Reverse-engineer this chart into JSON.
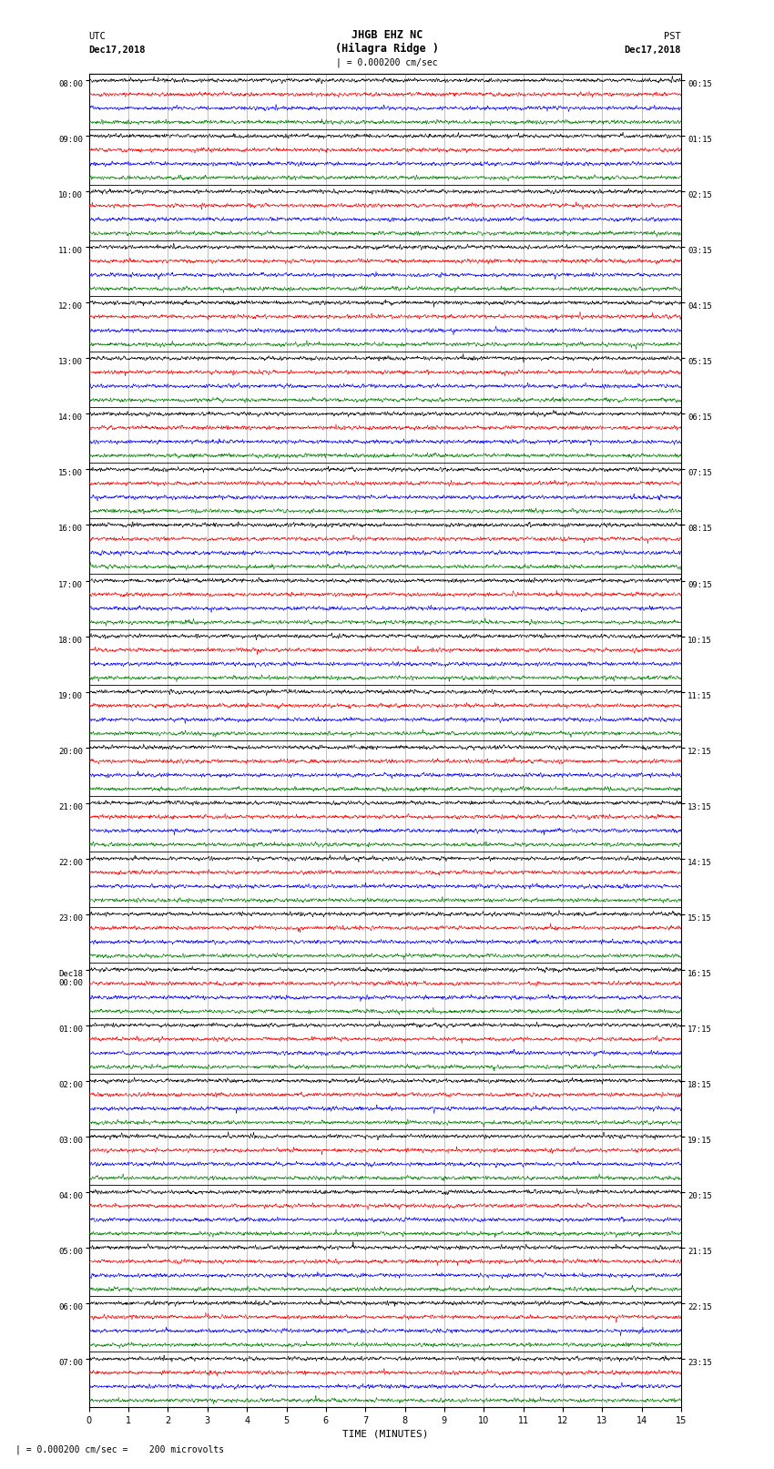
{
  "title_line1": "JHGB EHZ NC",
  "title_line2": "(Hilagra Ridge )",
  "scale_text": "| = 0.000200 cm/sec",
  "left_label": "UTC",
  "left_date": "Dec17,2018",
  "right_label": "PST",
  "right_date": "Dec17,2018",
  "bottom_label": "TIME (MINUTES)",
  "bottom_note": "| = 0.000200 cm/sec =    200 microvolts",
  "colors": [
    "black",
    "red",
    "blue",
    "green"
  ],
  "utc_times": [
    "08:00",
    "09:00",
    "10:00",
    "11:00",
    "12:00",
    "13:00",
    "14:00",
    "15:00",
    "16:00",
    "17:00",
    "18:00",
    "19:00",
    "20:00",
    "21:00",
    "22:00",
    "23:00",
    "Dec18\n00:00",
    "01:00",
    "02:00",
    "03:00",
    "04:00",
    "05:00",
    "06:00",
    "07:00"
  ],
  "pst_times": [
    "00:15",
    "01:15",
    "02:15",
    "03:15",
    "04:15",
    "05:15",
    "06:15",
    "07:15",
    "08:15",
    "09:15",
    "10:15",
    "11:15",
    "12:15",
    "13:15",
    "14:15",
    "15:15",
    "16:15",
    "17:15",
    "18:15",
    "19:15",
    "20:15",
    "21:15",
    "22:15",
    "23:15"
  ],
  "n_rows": 24,
  "n_traces_per_row": 4,
  "x_min": 0,
  "x_max": 15,
  "noise_amplitude": 0.06,
  "occasional_spike_prob": 0.002,
  "spike_amplitude": 0.35,
  "bg_color": "white",
  "grid_color": "#aaaaaa",
  "trace_lw": 0.4,
  "seed": 42
}
